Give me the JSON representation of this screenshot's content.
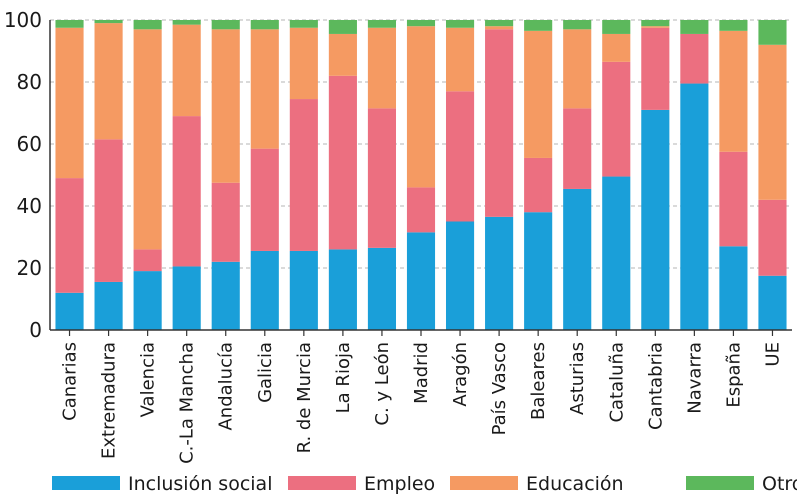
{
  "chart_data": {
    "type": "bar",
    "stacked": true,
    "title": "",
    "xlabel": "",
    "ylabel": "",
    "ylim": [
      0,
      100
    ],
    "yticks": [
      0,
      20,
      40,
      60,
      80,
      100
    ],
    "grid": "horizontal-dashed",
    "legend_position": "bottom",
    "categories": [
      "Canarias",
      "Extremadura",
      "Valencia",
      "C.-La Mancha",
      "Andalucía",
      "Galicia",
      "R. de Murcia",
      "La Rioja",
      "C. y León",
      "Madrid",
      "Aragón",
      "País Vasco",
      "Baleares",
      "Asturias",
      "Cataluña",
      "Cantabria",
      "Navarra",
      "España",
      "UE"
    ],
    "series": [
      {
        "name": "Inclusión social",
        "color": "#1a9fd9",
        "values": [
          12,
          15.5,
          19,
          20.5,
          22,
          25.5,
          25.5,
          26,
          26.5,
          31.5,
          35,
          36.5,
          38,
          45.5,
          49.5,
          71,
          79.5,
          27,
          17.5
        ]
      },
      {
        "name": "Empleo",
        "color": "#ec6f80",
        "values": [
          37,
          46,
          7,
          48.5,
          25.5,
          33,
          49,
          56,
          45,
          14.5,
          42,
          60.5,
          17.5,
          26,
          37,
          26.5,
          16,
          30.5,
          24.5
        ]
      },
      {
        "name": "Educación",
        "color": "#f59a62",
        "values": [
          48.5,
          37.5,
          71,
          29.5,
          49.5,
          38.5,
          23,
          13.5,
          26,
          52,
          20.5,
          1,
          41,
          25.5,
          9,
          0.5,
          0,
          39,
          50
        ]
      },
      {
        "name": "Otros",
        "color": "#5cb85c",
        "values": [
          2.5,
          1,
          3,
          1.5,
          3,
          3,
          2.5,
          4.5,
          2.5,
          2,
          2.5,
          2,
          3.5,
          3,
          4.5,
          2,
          4.5,
          3.5,
          8
        ]
      }
    ]
  }
}
